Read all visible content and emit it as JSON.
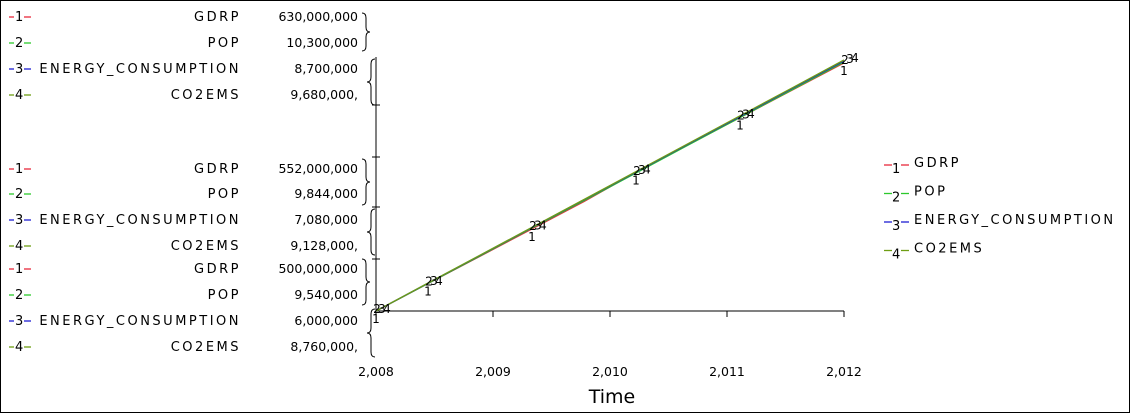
{
  "chart_data": {
    "type": "line",
    "x": [
      2008,
      2009,
      2010,
      2011,
      2012
    ],
    "x_tick_labels": [
      "2,008",
      "2,009",
      "2,010",
      "2,011",
      "2,012"
    ],
    "xlabel": "Time",
    "xlim": [
      2008,
      2012
    ],
    "grid": false,
    "legend_placement": "right",
    "series": [
      {
        "name": "GDRP",
        "number": "1",
        "color": "#e8283c",
        "y_axis_range": [
          500000000,
          630000000
        ],
        "values": [
          500000000,
          514000000,
          528000000,
          542000000,
          556000000,
          571000000,
          585000000,
          599000000,
          613000000,
          627000000
        ]
      },
      {
        "name": "POP",
        "number": "2",
        "color": "#2cc82c",
        "y_axis_range": [
          9540000,
          10300000
        ],
        "values": [
          9540000,
          9622000,
          9705000,
          9788000,
          9870000,
          9953000,
          10036000,
          10119000,
          10202000,
          10285000
        ]
      },
      {
        "name": "ENERGY_CONSUMPTION",
        "number": "3",
        "color": "#1e1ed2",
        "y_axis_range": [
          6000000,
          8700000
        ],
        "values": [
          6000000,
          6296000,
          6591000,
          6887000,
          7182000,
          7477000,
          7773000,
          8068000,
          8364000,
          8659000
        ]
      },
      {
        "name": "CO2EMS",
        "number": "4",
        "color": "#6e9e14",
        "y_axis_range": [
          8760000,
          9680000
        ],
        "values": [
          8760000,
          8861000,
          8962000,
          9063000,
          9164000,
          9265000,
          9366000,
          9467000,
          9568000,
          9669000
        ]
      }
    ],
    "x_values": [
      2008,
      2008.444,
      2008.889,
      2009.333,
      2009.778,
      2010.222,
      2010.667,
      2011.111,
      2011.556,
      2012
    ]
  },
  "axis_blocks": [
    {
      "level": "top",
      "rows": [
        {
          "n": "1",
          "var": "GDRP",
          "value": "630,000,000"
        },
        {
          "n": "2",
          "var": "POP",
          "value": "10,300,000"
        },
        {
          "n": "3",
          "var": "ENERGY_CONSUMPTION",
          "value": "8,700,000"
        },
        {
          "n": "4",
          "var": "CO2EMS",
          "value": "9,680,000,"
        }
      ]
    },
    {
      "level": "mid",
      "rows": [
        {
          "n": "1",
          "var": "GDRP",
          "value": "552,000,000"
        },
        {
          "n": "2",
          "var": "POP",
          "value": "9,844,000"
        },
        {
          "n": "3",
          "var": "ENERGY_CONSUMPTION",
          "value": "7,080,000"
        },
        {
          "n": "4",
          "var": "CO2EMS",
          "value": "9,128,000,"
        }
      ]
    },
    {
      "level": "bottom",
      "rows": [
        {
          "n": "1",
          "var": "GDRP",
          "value": "500,000,000"
        },
        {
          "n": "2",
          "var": "POP",
          "value": "9,540,000"
        },
        {
          "n": "3",
          "var": "ENERGY_CONSUMPTION",
          "value": "6,000,000"
        },
        {
          "n": "4",
          "var": "CO2EMS",
          "value": "8,760,000,"
        }
      ]
    }
  ],
  "legend": [
    {
      "n": "1",
      "label": "GDRP",
      "color": "#e8283c"
    },
    {
      "n": "2",
      "label": "POP",
      "color": "#2cc82c"
    },
    {
      "n": "3",
      "label": "ENERGY_CONSUMPTION",
      "color": "#1e1ed2"
    },
    {
      "n": "4",
      "label": "CO2EMS",
      "color": "#6e9e14"
    }
  ]
}
